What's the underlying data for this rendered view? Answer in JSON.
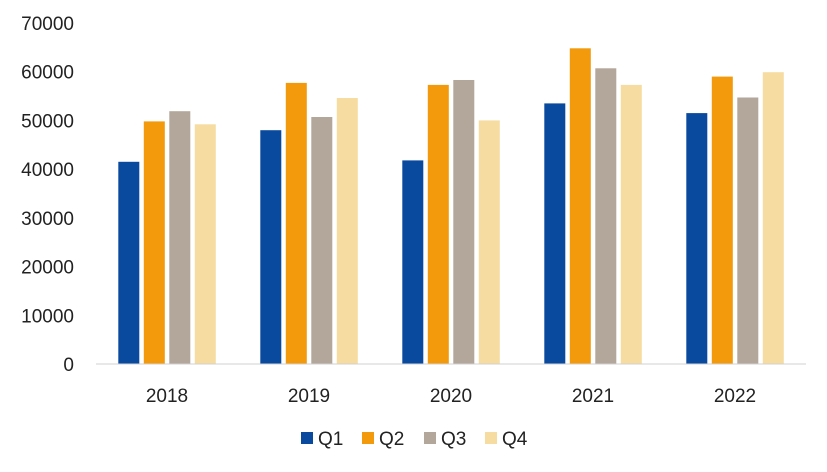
{
  "chart_data": {
    "type": "bar",
    "title": "",
    "xlabel": "",
    "ylabel": "",
    "categories": [
      "2018",
      "2019",
      "2020",
      "2021",
      "2022"
    ],
    "series": [
      {
        "name": "Q1",
        "color": "#0A4A9E",
        "values": [
          41500,
          48000,
          41800,
          53500,
          51500
        ]
      },
      {
        "name": "Q2",
        "color": "#F29A0C",
        "values": [
          49800,
          57700,
          57300,
          64800,
          59000
        ]
      },
      {
        "name": "Q3",
        "color": "#B3A69A",
        "values": [
          51900,
          50700,
          58300,
          60700,
          54700
        ]
      },
      {
        "name": "Q4",
        "color": "#F7DCA2",
        "values": [
          49200,
          54600,
          50000,
          57300,
          59900
        ]
      }
    ],
    "ylim": [
      0,
      70000
    ],
    "yticks": [
      0,
      10000,
      20000,
      30000,
      40000,
      50000,
      60000,
      70000
    ],
    "ytick_labels": [
      "0",
      "10000",
      "20000",
      "30000",
      "40000",
      "50000",
      "60000",
      "70000"
    ],
    "grid": false,
    "legend": "bottom"
  }
}
